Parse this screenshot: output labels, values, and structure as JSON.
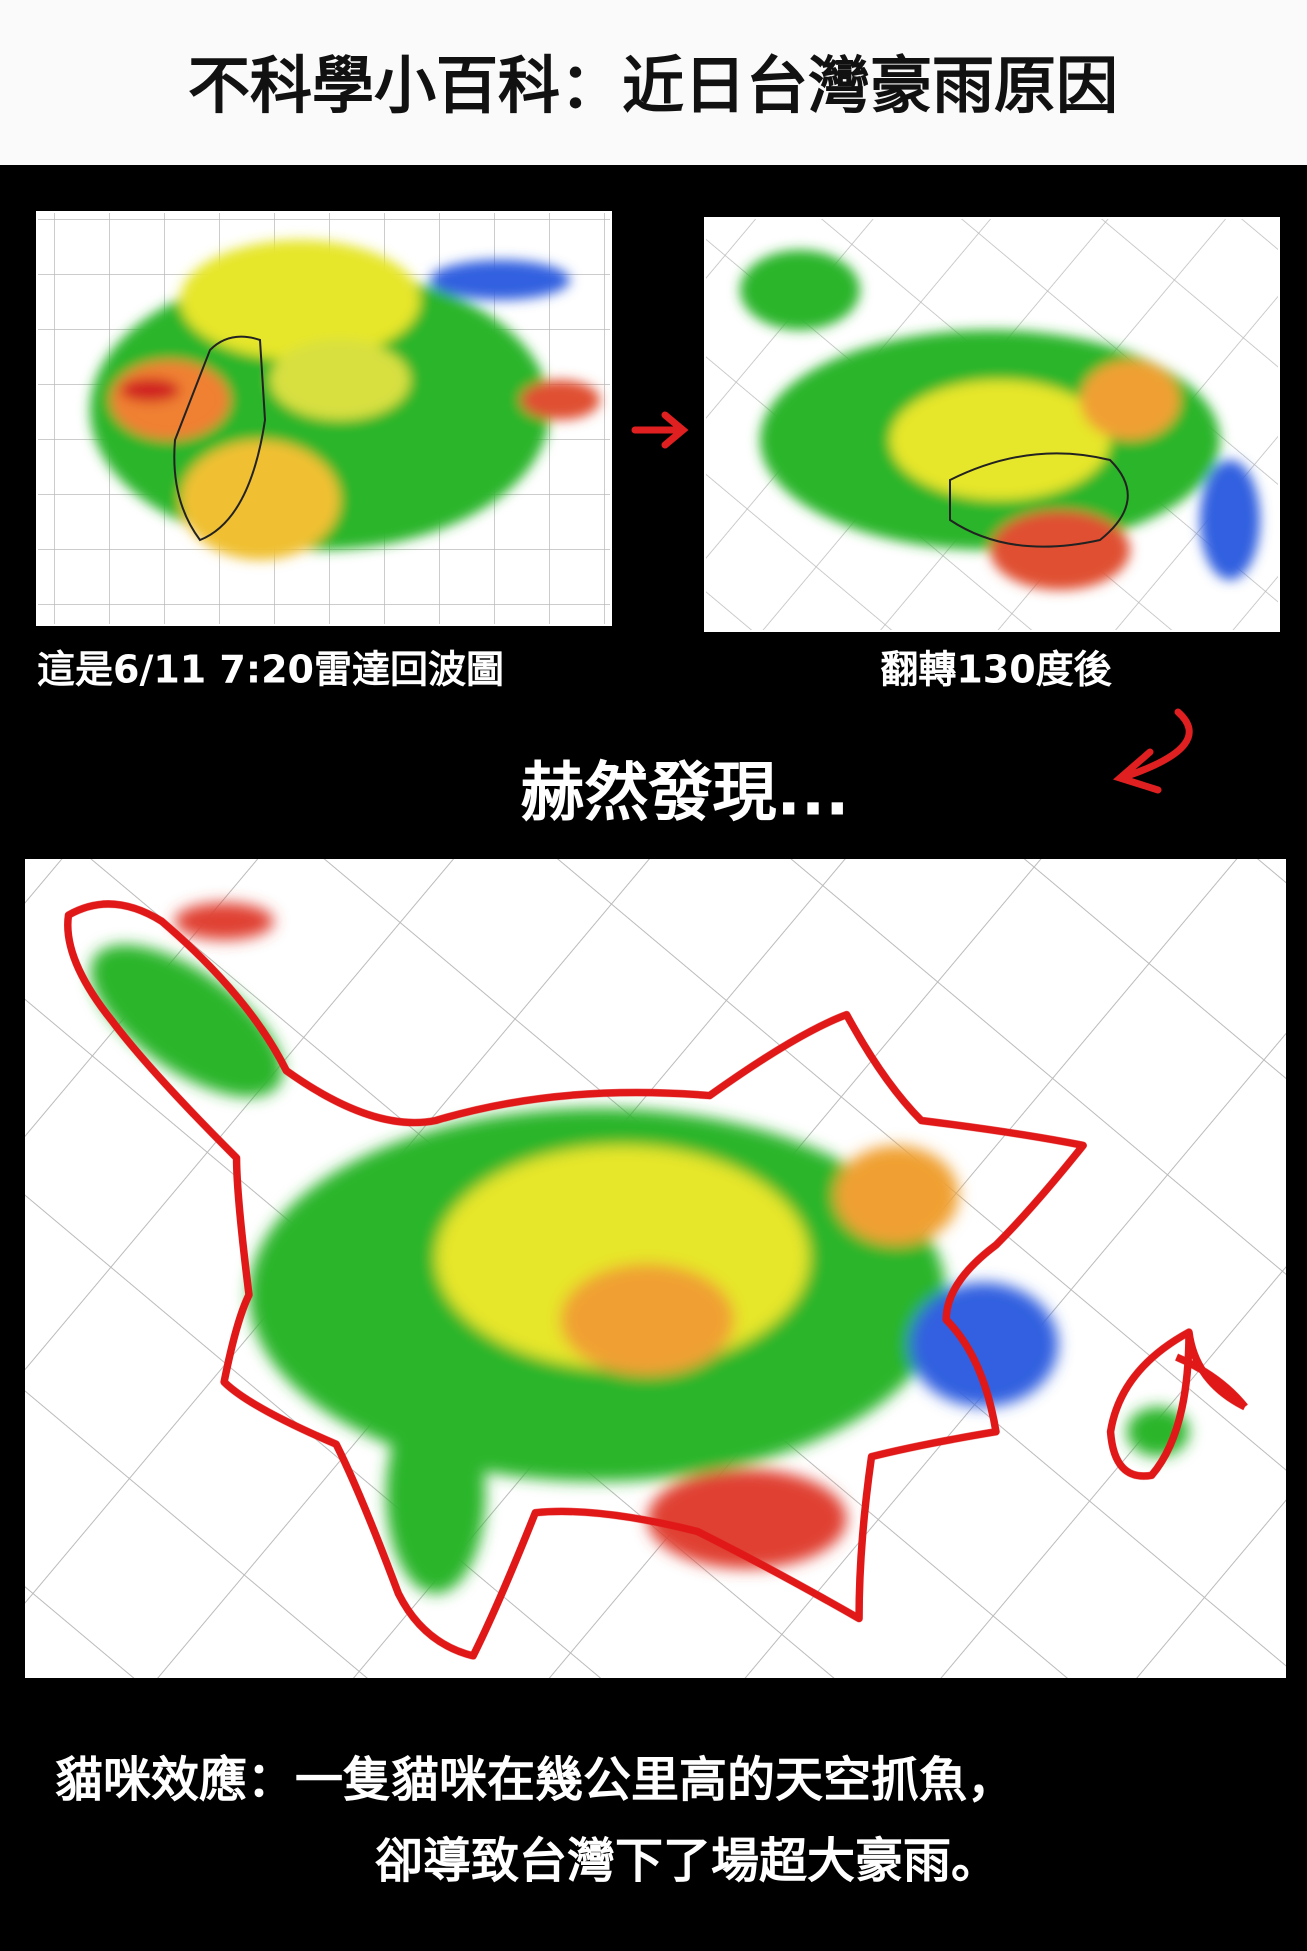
{
  "header": {
    "title": "不科學小百科：近日台灣豪雨原因"
  },
  "panels": [
    {
      "caption": "這是6/11  7:20雷達回波圖"
    },
    {
      "caption": "翻轉130度後"
    }
  ],
  "heading": "赫然發現...",
  "footer": {
    "lines": [
      "貓咪效應：一隻貓咪在幾公里高的天空抓魚，",
      "卻導致台灣下了場超大豪雨。"
    ]
  }
}
